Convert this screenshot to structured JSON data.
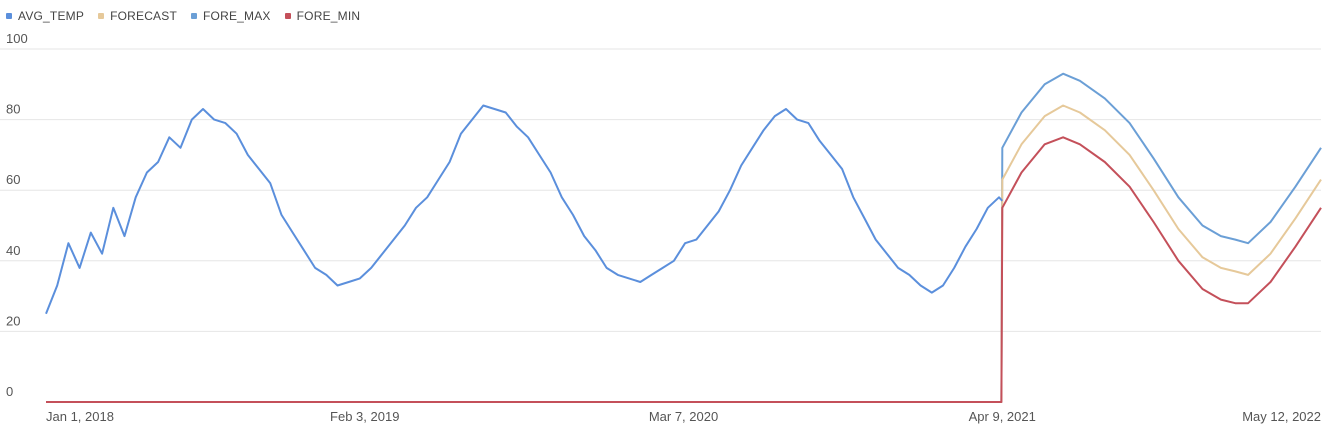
{
  "chart_data": {
    "type": "line",
    "title": "",
    "xlabel": "",
    "ylabel": "",
    "ylim": [
      0,
      100
    ],
    "y_ticks": [
      0,
      20,
      40,
      60,
      80,
      100
    ],
    "x_ticks": [
      {
        "date": "2018-01-01",
        "label": "Jan 1, 2018"
      },
      {
        "date": "2019-02-03",
        "label": "Feb 3, 2019"
      },
      {
        "date": "2020-03-07",
        "label": "Mar 7, 2020"
      },
      {
        "date": "2021-04-09",
        "label": "Apr 9, 2021"
      },
      {
        "date": "2022-05-12",
        "label": "May 12, 2022"
      }
    ],
    "x_range": [
      "2018-01-01",
      "2022-05-12"
    ],
    "grid": "horizontal",
    "legend_position": "top-left",
    "series": [
      {
        "name": "AVG_TEMP",
        "color": "#5b8fdc",
        "points": [
          [
            "2018-01-01",
            25
          ],
          [
            "2018-01-15",
            33
          ],
          [
            "2018-01-29",
            45
          ],
          [
            "2018-02-12",
            38
          ],
          [
            "2018-02-26",
            48
          ],
          [
            "2018-03-12",
            42
          ],
          [
            "2018-03-26",
            55
          ],
          [
            "2018-04-09",
            47
          ],
          [
            "2018-04-23",
            58
          ],
          [
            "2018-05-07",
            65
          ],
          [
            "2018-05-21",
            68
          ],
          [
            "2018-06-04",
            75
          ],
          [
            "2018-06-18",
            72
          ],
          [
            "2018-07-02",
            80
          ],
          [
            "2018-07-16",
            83
          ],
          [
            "2018-07-30",
            80
          ],
          [
            "2018-08-13",
            79
          ],
          [
            "2018-08-27",
            76
          ],
          [
            "2018-09-10",
            70
          ],
          [
            "2018-09-24",
            66
          ],
          [
            "2018-10-08",
            62
          ],
          [
            "2018-10-22",
            53
          ],
          [
            "2018-11-05",
            48
          ],
          [
            "2018-11-19",
            43
          ],
          [
            "2018-12-03",
            38
          ],
          [
            "2018-12-17",
            36
          ],
          [
            "2018-12-31",
            33
          ],
          [
            "2019-01-14",
            34
          ],
          [
            "2019-01-28",
            35
          ],
          [
            "2019-02-11",
            38
          ],
          [
            "2019-02-25",
            42
          ],
          [
            "2019-03-11",
            46
          ],
          [
            "2019-03-25",
            50
          ],
          [
            "2019-04-08",
            55
          ],
          [
            "2019-04-22",
            58
          ],
          [
            "2019-05-06",
            63
          ],
          [
            "2019-05-20",
            68
          ],
          [
            "2019-06-03",
            76
          ],
          [
            "2019-06-17",
            80
          ],
          [
            "2019-07-01",
            84
          ],
          [
            "2019-07-15",
            83
          ],
          [
            "2019-07-29",
            82
          ],
          [
            "2019-08-12",
            78
          ],
          [
            "2019-08-26",
            75
          ],
          [
            "2019-09-09",
            70
          ],
          [
            "2019-09-23",
            65
          ],
          [
            "2019-10-07",
            58
          ],
          [
            "2019-10-21",
            53
          ],
          [
            "2019-11-04",
            47
          ],
          [
            "2019-11-18",
            43
          ],
          [
            "2019-12-02",
            38
          ],
          [
            "2019-12-16",
            36
          ],
          [
            "2019-12-30",
            35
          ],
          [
            "2020-01-13",
            34
          ],
          [
            "2020-01-27",
            36
          ],
          [
            "2020-02-10",
            38
          ],
          [
            "2020-02-24",
            40
          ],
          [
            "2020-03-09",
            45
          ],
          [
            "2020-03-23",
            46
          ],
          [
            "2020-04-06",
            50
          ],
          [
            "2020-04-20",
            54
          ],
          [
            "2020-05-04",
            60
          ],
          [
            "2020-05-18",
            67
          ],
          [
            "2020-06-01",
            72
          ],
          [
            "2020-06-15",
            77
          ],
          [
            "2020-06-29",
            81
          ],
          [
            "2020-07-13",
            83
          ],
          [
            "2020-07-27",
            80
          ],
          [
            "2020-08-10",
            79
          ],
          [
            "2020-08-24",
            74
          ],
          [
            "2020-09-07",
            70
          ],
          [
            "2020-09-21",
            66
          ],
          [
            "2020-10-05",
            58
          ],
          [
            "2020-10-19",
            52
          ],
          [
            "2020-11-02",
            46
          ],
          [
            "2020-11-16",
            42
          ],
          [
            "2020-11-30",
            38
          ],
          [
            "2020-12-14",
            36
          ],
          [
            "2020-12-28",
            33
          ],
          [
            "2021-01-11",
            31
          ],
          [
            "2021-01-25",
            33
          ],
          [
            "2021-02-08",
            38
          ],
          [
            "2021-02-22",
            44
          ],
          [
            "2021-03-08",
            49
          ],
          [
            "2021-03-22",
            55
          ],
          [
            "2021-04-05",
            58
          ],
          [
            "2021-04-09",
            57
          ]
        ]
      },
      {
        "name": "FORECAST",
        "color": "#e6c99a",
        "points": [
          [
            "2018-01-01",
            0
          ],
          [
            "2021-04-08",
            0
          ],
          [
            "2021-04-09",
            63
          ],
          [
            "2021-05-03",
            73
          ],
          [
            "2021-06-01",
            81
          ],
          [
            "2021-06-24",
            84
          ],
          [
            "2021-07-15",
            82
          ],
          [
            "2021-08-15",
            77
          ],
          [
            "2021-09-15",
            70
          ],
          [
            "2021-10-15",
            60
          ],
          [
            "2021-11-15",
            49
          ],
          [
            "2021-12-15",
            41
          ],
          [
            "2022-01-07",
            38
          ],
          [
            "2022-01-25",
            37
          ],
          [
            "2022-02-10",
            36
          ],
          [
            "2022-03-10",
            42
          ],
          [
            "2022-04-10",
            52
          ],
          [
            "2022-05-12",
            63
          ]
        ]
      },
      {
        "name": "FORE_MAX",
        "color": "#6b9fd6",
        "points": [
          [
            "2018-01-01",
            0
          ],
          [
            "2021-04-08",
            0
          ],
          [
            "2021-04-09",
            72
          ],
          [
            "2021-05-03",
            82
          ],
          [
            "2021-06-01",
            90
          ],
          [
            "2021-06-24",
            93
          ],
          [
            "2021-07-15",
            91
          ],
          [
            "2021-08-15",
            86
          ],
          [
            "2021-09-15",
            79
          ],
          [
            "2021-10-15",
            69
          ],
          [
            "2021-11-15",
            58
          ],
          [
            "2021-12-15",
            50
          ],
          [
            "2022-01-07",
            47
          ],
          [
            "2022-01-25",
            46
          ],
          [
            "2022-02-10",
            45
          ],
          [
            "2022-03-10",
            51
          ],
          [
            "2022-04-10",
            61
          ],
          [
            "2022-05-12",
            72
          ]
        ]
      },
      {
        "name": "FORE_MIN",
        "color": "#c4505a",
        "points": [
          [
            "2018-01-01",
            0
          ],
          [
            "2021-04-08",
            0
          ],
          [
            "2021-04-09",
            55
          ],
          [
            "2021-05-03",
            65
          ],
          [
            "2021-06-01",
            73
          ],
          [
            "2021-06-24",
            75
          ],
          [
            "2021-07-15",
            73
          ],
          [
            "2021-08-15",
            68
          ],
          [
            "2021-09-15",
            61
          ],
          [
            "2021-10-15",
            51
          ],
          [
            "2021-11-15",
            40
          ],
          [
            "2021-12-15",
            32
          ],
          [
            "2022-01-07",
            29
          ],
          [
            "2022-01-25",
            28
          ],
          [
            "2022-02-10",
            28
          ],
          [
            "2022-03-10",
            34
          ],
          [
            "2022-04-10",
            44
          ],
          [
            "2022-05-12",
            55
          ]
        ]
      }
    ]
  }
}
